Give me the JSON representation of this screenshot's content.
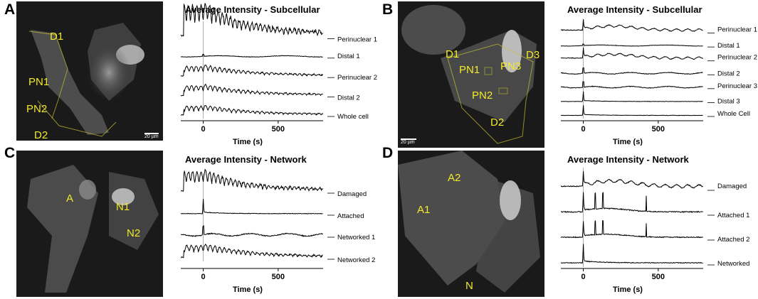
{
  "panels": [
    {
      "label": "A",
      "cell_labels": [
        "D1",
        "PN1",
        "PN2",
        "D2"
      ],
      "scale_text": "20 µm",
      "chart_data": {
        "type": "line",
        "title": "Average Intensity - Subcellular",
        "xlabel": "Time (s)",
        "xlim": [
          -150,
          800
        ],
        "xticks": [
          0,
          500
        ],
        "series": [
          {
            "name": "Perinuclear 1",
            "pattern": "strong"
          },
          {
            "name": "Distal 1",
            "pattern": "flat"
          },
          {
            "name": "Perinuclear 2",
            "pattern": "medium"
          },
          {
            "name": "Distal 2",
            "pattern": "medium"
          },
          {
            "name": "Whole cell",
            "pattern": "medium"
          }
        ]
      }
    },
    {
      "label": "B",
      "cell_labels": [
        "D1",
        "PN1",
        "PN3",
        "D3",
        "PN2",
        "D2"
      ],
      "scale_text": "20 µm",
      "chart_data": {
        "type": "line",
        "title": "Average Intensity - Subcellular",
        "xlabel": "Time (s)",
        "xlim": [
          -150,
          800
        ],
        "xticks": [
          0,
          500
        ],
        "series": [
          {
            "name": "Perinuclear 1",
            "pattern": "wave"
          },
          {
            "name": "Distal 1",
            "pattern": "flat"
          },
          {
            "name": "Perinuclear 2",
            "pattern": "wave"
          },
          {
            "name": "Distal 2",
            "pattern": "small"
          },
          {
            "name": "Perinuclear 3",
            "pattern": "small"
          },
          {
            "name": "Distal 3",
            "pattern": "spike"
          },
          {
            "name": "Whole Cell",
            "pattern": "spike"
          }
        ]
      }
    },
    {
      "label": "C",
      "cell_labels": [
        "A",
        "N1",
        "N2"
      ],
      "chart_data": {
        "type": "line",
        "title": "Average Intensity - Network",
        "xlabel": "Time (s)",
        "xlim": [
          -150,
          800
        ],
        "xticks": [
          0,
          500
        ],
        "series": [
          {
            "name": "Damaged",
            "pattern": "strong"
          },
          {
            "name": "Attached",
            "pattern": "spike"
          },
          {
            "name": "Networked 1",
            "pattern": "small"
          },
          {
            "name": "Networked 2",
            "pattern": "medium"
          }
        ]
      }
    },
    {
      "label": "D",
      "cell_labels": [
        "A2",
        "A1",
        "N"
      ],
      "chart_data": {
        "type": "line",
        "title": "Average Intensity - Network",
        "xlabel": "Time (s)",
        "xlim": [
          -150,
          800
        ],
        "xticks": [
          0,
          500
        ],
        "series": [
          {
            "name": "Damaged",
            "pattern": "wave"
          },
          {
            "name": "Attached 1",
            "pattern": "spikes"
          },
          {
            "name": "Attached 2",
            "pattern": "spikes"
          },
          {
            "name": "Networked",
            "pattern": "spike"
          }
        ]
      }
    }
  ]
}
